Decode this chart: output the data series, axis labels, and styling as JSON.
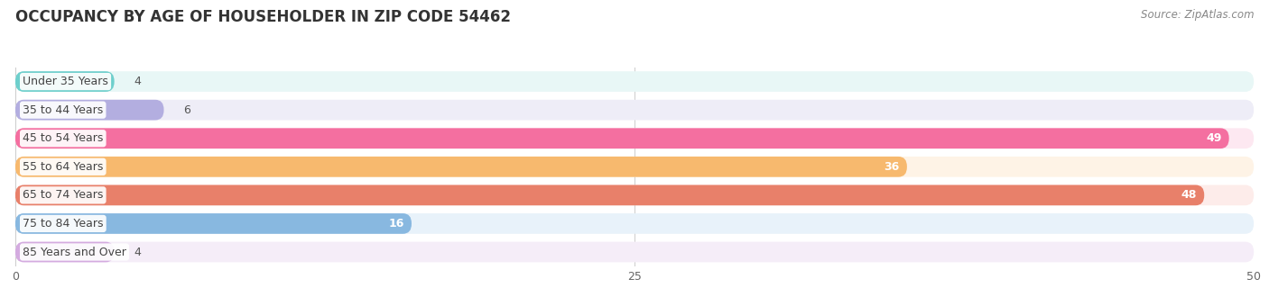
{
  "title": "OCCUPANCY BY AGE OF HOUSEHOLDER IN ZIP CODE 54462",
  "source": "Source: ZipAtlas.com",
  "categories": [
    "Under 35 Years",
    "35 to 44 Years",
    "45 to 54 Years",
    "55 to 64 Years",
    "65 to 74 Years",
    "75 to 84 Years",
    "85 Years and Over"
  ],
  "values": [
    4,
    6,
    49,
    36,
    48,
    16,
    4
  ],
  "bar_colors": [
    "#6ecfcc",
    "#b3aee0",
    "#f46fa0",
    "#f7b96e",
    "#e8806a",
    "#88b8e0",
    "#d4abe0"
  ],
  "bar_bg_colors": [
    "#e8f7f6",
    "#eeedf7",
    "#fde8f1",
    "#fef3e6",
    "#fdecea",
    "#e8f2fa",
    "#f5edf8"
  ],
  "xlim": [
    0,
    50
  ],
  "xticks": [
    0,
    25,
    50
  ],
  "background_color": "#ffffff",
  "title_fontsize": 12,
  "source_fontsize": 8.5,
  "label_fontsize": 9,
  "value_fontsize": 9
}
